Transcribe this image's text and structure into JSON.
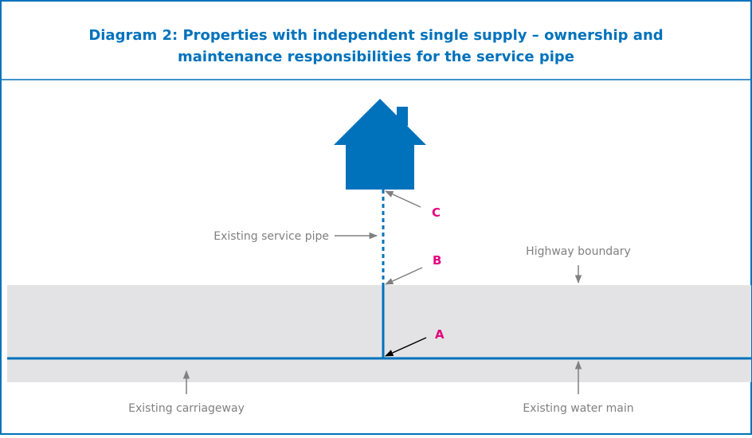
{
  "title_lines": [
    "Diagram 2: Properties with independent single supply – ownership and",
    "maintenance responsibilities for the service pipe"
  ],
  "labels": {
    "c": "C",
    "b": "B",
    "a": "A",
    "service_pipe": "Existing service pipe",
    "highway_boundary": "Highway boundary",
    "carriageway": "Existing carriageway",
    "water_main": "Existing water main"
  }
}
